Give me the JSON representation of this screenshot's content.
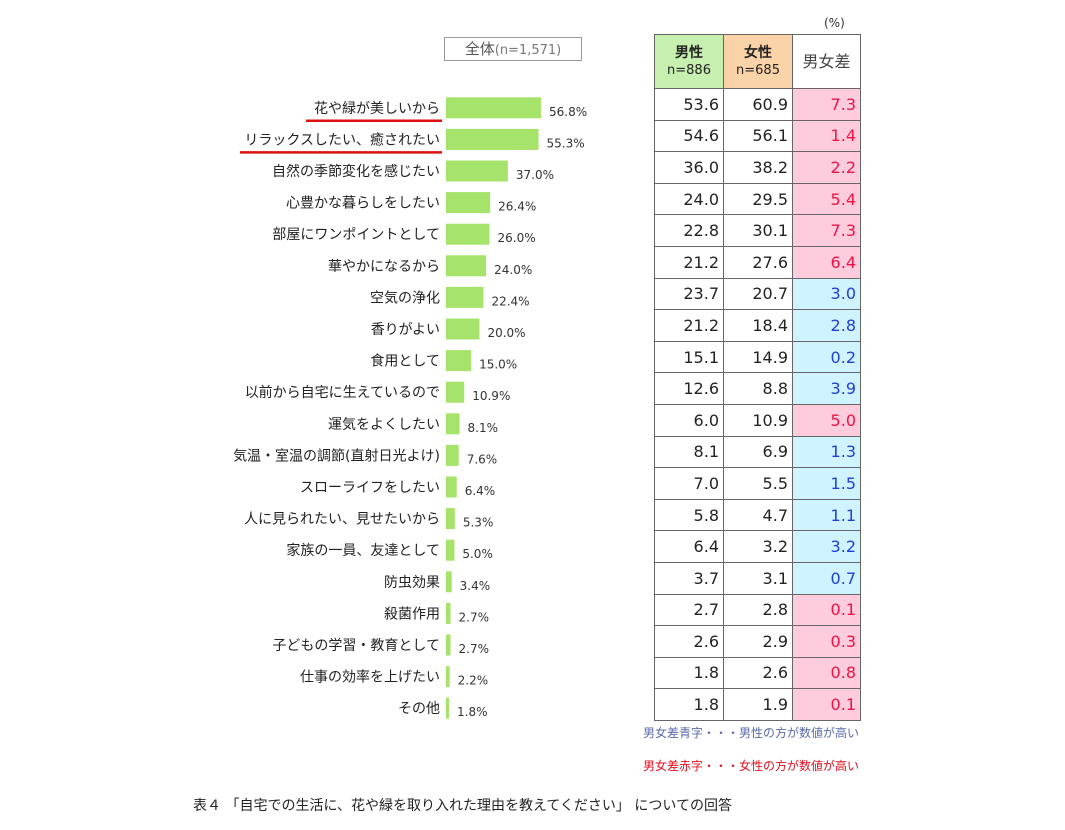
{
  "chart_data": {
    "type": "bar",
    "orientation": "horizontal",
    "legend": "全体",
    "legend_n": "(n=1,571)",
    "unit": "(%)",
    "categories": [
      "花や緑が美しいから",
      "リラックスしたい、癒されたい",
      "自然の季節変化を感じたい",
      "心豊かな暮らしをしたい",
      "部屋にワンポイントとして",
      "華やかになるから",
      "空気の浄化",
      "香りがよい",
      "食用として",
      "以前から自宅に生えているので",
      "運気をよくしたい",
      "気温・室温の調節(直射日光よけ)",
      "スローライフをしたい",
      "人に見られたい、見せたいから",
      "家族の一員、友達として",
      "防虫効果",
      "殺菌作用",
      "子どもの学習・教育として",
      "仕事の効率を上げたい",
      "その他"
    ],
    "values": [
      56.8,
      55.3,
      37.0,
      26.4,
      26.0,
      24.0,
      22.4,
      20.0,
      15.0,
      10.9,
      8.1,
      7.6,
      6.4,
      5.3,
      5.0,
      3.4,
      2.7,
      2.7,
      2.2,
      1.8
    ],
    "value_labels": [
      "56.8%",
      "55.3%",
      "37.0%",
      "26.4%",
      "26.0%",
      "24.0%",
      "22.4%",
      "20.0%",
      "15.0%",
      "10.9%",
      "8.1%",
      "7.6%",
      "6.4%",
      "5.3%",
      "5.0%",
      "3.4%",
      "2.7%",
      "2.7%",
      "2.2%",
      "1.8%"
    ],
    "underlined_categories": [
      0,
      1
    ],
    "bar_color": "#a6e36a",
    "underline_color": "#dd1111"
  },
  "table": {
    "headers": {
      "male": "男性",
      "male_n": "n=886",
      "female": "女性",
      "female_n": "n=685",
      "gap": "男女差"
    },
    "rows": [
      {
        "male": "53.6",
        "female": "60.9",
        "gap": "7.3",
        "sign": "pos"
      },
      {
        "male": "54.6",
        "female": "56.1",
        "gap": "1.4",
        "sign": "pos"
      },
      {
        "male": "36.0",
        "female": "38.2",
        "gap": "2.2",
        "sign": "pos"
      },
      {
        "male": "24.0",
        "female": "29.5",
        "gap": "5.4",
        "sign": "pos"
      },
      {
        "male": "22.8",
        "female": "30.1",
        "gap": "7.3",
        "sign": "pos"
      },
      {
        "male": "21.2",
        "female": "27.6",
        "gap": "6.4",
        "sign": "pos"
      },
      {
        "male": "23.7",
        "female": "20.7",
        "gap": "3.0",
        "sign": "neg"
      },
      {
        "male": "21.2",
        "female": "18.4",
        "gap": "2.8",
        "sign": "neg"
      },
      {
        "male": "15.1",
        "female": "14.9",
        "gap": "0.2",
        "sign": "neg"
      },
      {
        "male": "12.6",
        "female": "8.8",
        "gap": "3.9",
        "sign": "neg"
      },
      {
        "male": "6.0",
        "female": "10.9",
        "gap": "5.0",
        "sign": "pos"
      },
      {
        "male": "8.1",
        "female": "6.9",
        "gap": "1.3",
        "sign": "neg"
      },
      {
        "male": "7.0",
        "female": "5.5",
        "gap": "1.5",
        "sign": "neg"
      },
      {
        "male": "5.8",
        "female": "4.7",
        "gap": "1.1",
        "sign": "neg"
      },
      {
        "male": "6.4",
        "female": "3.2",
        "gap": "3.2",
        "sign": "neg"
      },
      {
        "male": "3.7",
        "female": "3.1",
        "gap": "0.7",
        "sign": "neg"
      },
      {
        "male": "2.7",
        "female": "2.8",
        "gap": "0.1",
        "sign": "pos"
      },
      {
        "male": "2.6",
        "female": "2.9",
        "gap": "0.3",
        "sign": "pos"
      },
      {
        "male": "1.8",
        "female": "2.6",
        "gap": "0.8",
        "sign": "pos"
      },
      {
        "male": "1.8",
        "female": "1.9",
        "gap": "0.1",
        "sign": "pos"
      }
    ]
  },
  "notes": {
    "blue": "男女差青字・・・男性の方が数値が高い",
    "red": "男女差赤字・・・女性の方が数値が高い"
  },
  "caption": "表４ 「自宅での生活に、花や緑を取り入れた理由を教えてください」 についての回答",
  "colors": {
    "male_header": "#c6efb0",
    "female_header": "#fbd3a8",
    "gap_pos_bg": "#ffccdd",
    "gap_pos_text": "#ee1144",
    "gap_neg_bg": "#cff3ff",
    "gap_neg_text": "#1f3fd8"
  }
}
